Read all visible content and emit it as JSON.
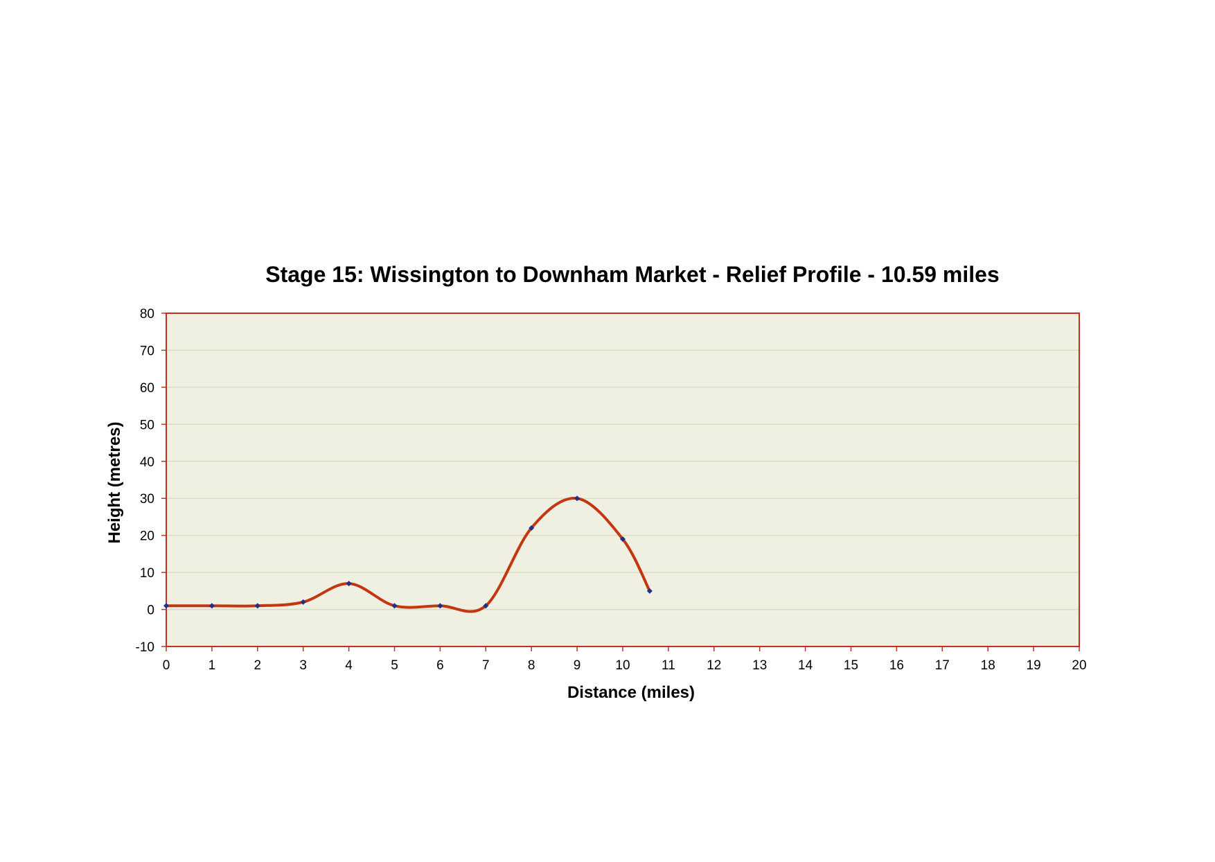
{
  "chart_data": {
    "type": "line",
    "title": "Stage 15: Wissington to Downham Market - Relief Profile - 10.59 miles",
    "xlabel": "Distance (miles)",
    "ylabel": "Height (metres)",
    "xlim": [
      0,
      20
    ],
    "ylim": [
      -10,
      80
    ],
    "x_ticks": [
      "0",
      "1",
      "2",
      "3",
      "4",
      "5",
      "6",
      "7",
      "8",
      "9",
      "10",
      "11",
      "12",
      "13",
      "14",
      "15",
      "16",
      "17",
      "18",
      "19",
      "20"
    ],
    "y_ticks": [
      "-10",
      "0",
      "10",
      "20",
      "30",
      "40",
      "50",
      "60",
      "70",
      "80"
    ],
    "grid": true,
    "legend": "none",
    "smooth": true,
    "series": [
      {
        "x": [
          0,
          1,
          2,
          3,
          4,
          5,
          6,
          7,
          8,
          9,
          10,
          10.59
        ],
        "y": [
          1,
          1,
          1,
          2,
          7,
          1,
          1,
          1,
          22,
          30,
          19,
          5
        ]
      }
    ],
    "colors": {
      "plot_background": "#eff0e1",
      "plot_border": "#c0311f",
      "gridline": "#d6dbb4",
      "line": "#c4360f",
      "marker": "#1f2f8c"
    }
  }
}
